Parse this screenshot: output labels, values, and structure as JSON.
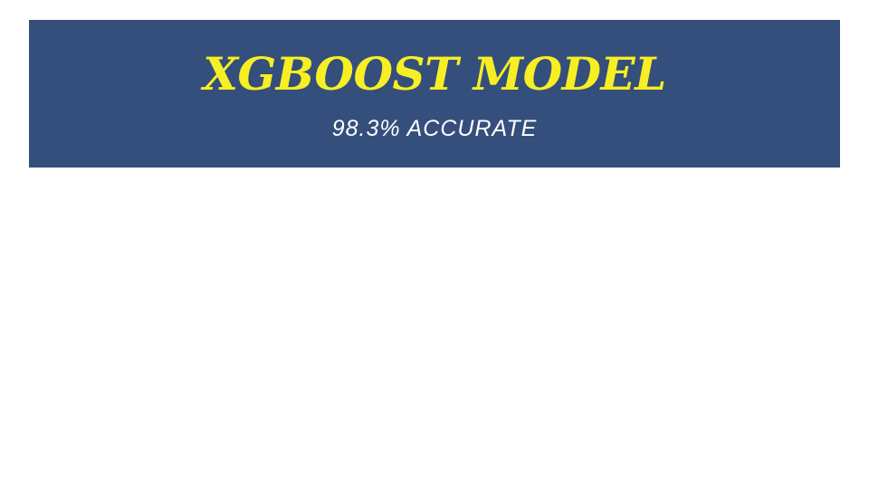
{
  "slide": {
    "title": "XGBOOST MODEL",
    "subtitle": "98.3% ACCURATE"
  },
  "colors": {
    "banner_background": "#344f7c",
    "title_color": "#f7ef24",
    "subtitle_color": "#ffffff",
    "page_background": "#ffffff"
  }
}
